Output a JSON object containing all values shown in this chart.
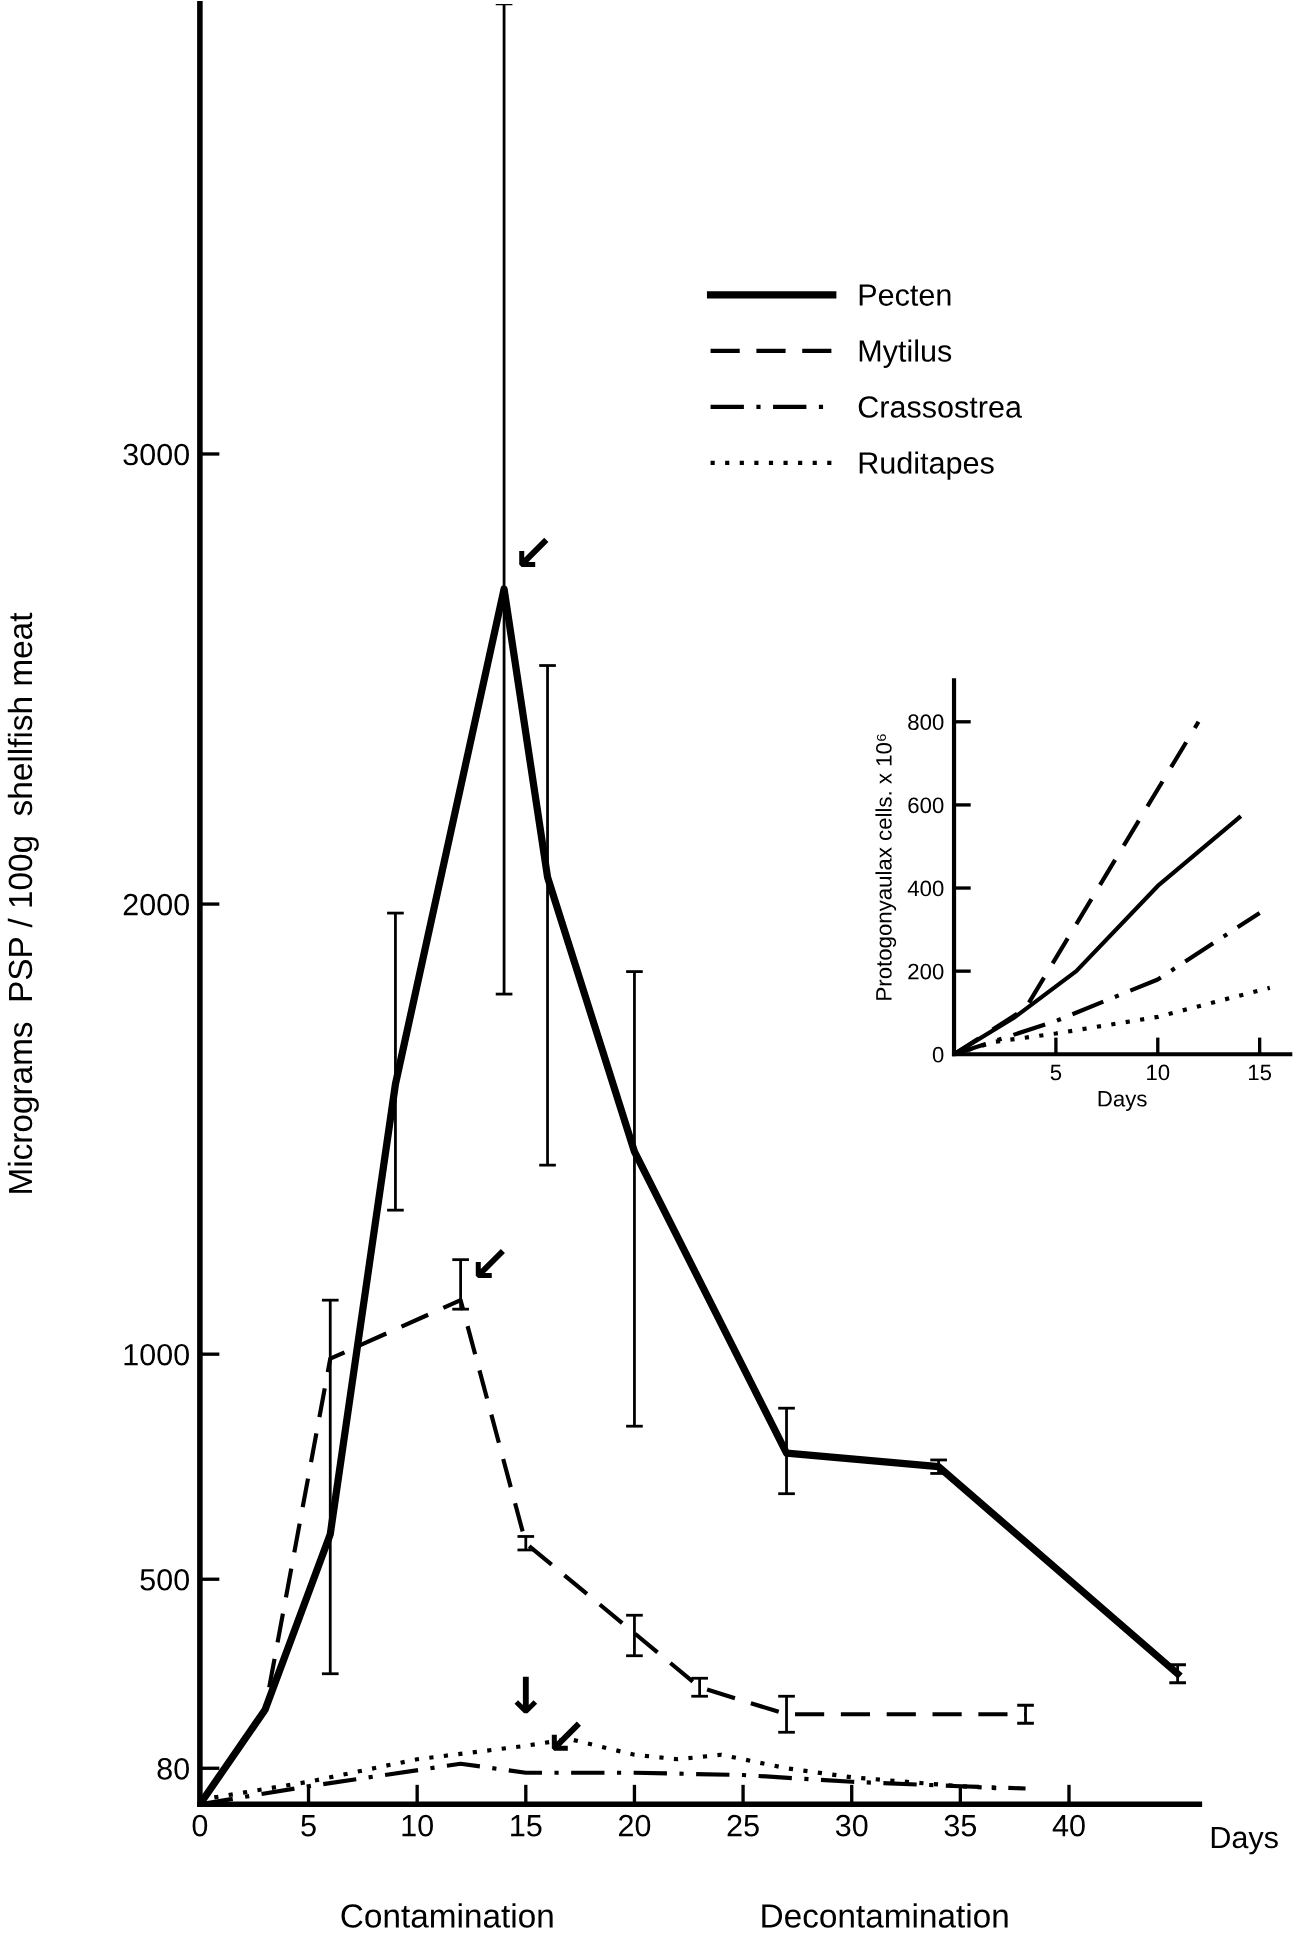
{
  "chart_data": [
    {
      "type": "line",
      "xlabel": "Days",
      "ylabel": "Micrograms  PSP / 100g  shellfish meat",
      "xlim": [
        0,
        46
      ],
      "xticks": [
        0,
        5,
        10,
        15,
        20,
        25,
        30,
        35,
        40
      ],
      "ylim": [
        0,
        4000
      ],
      "yticks": [
        80,
        500,
        1000,
        2000,
        3000
      ],
      "legend": "top right",
      "grid": false,
      "series": [
        {
          "name": "Pecten",
          "color": "#000000",
          "line_style": "solid",
          "x": [
            0,
            3,
            6,
            9,
            14,
            16,
            20,
            27,
            34,
            45
          ],
          "values": [
            0,
            210,
            600,
            1600,
            2700,
            2060,
            1450,
            780,
            750,
            290
          ],
          "errors": [
            null,
            null,
            null,
            [
              1320,
              1980
            ],
            [
              1800,
              4000
            ],
            [
              1420,
              2530
            ],
            [
              840,
              1850
            ],
            [
              690,
              880
            ],
            15,
            20
          ]
        },
        {
          "name": "Mytilus",
          "color": "#000000",
          "line_style": "dashed",
          "x": [
            0,
            3,
            6,
            12,
            15,
            20,
            23,
            27,
            38
          ],
          "values": [
            0,
            210,
            990,
            1120,
            580,
            380,
            260,
            200,
            200
          ],
          "errors": [
            null,
            null,
            [
              290,
              1120
            ],
            [
              1100,
              1210
            ],
            15,
            [
              330,
              420
            ],
            20,
            [
              160,
              240
            ],
            20
          ]
        },
        {
          "name": "Crassostrea",
          "color": "#000000",
          "line_style": "dashdot",
          "x": [
            0,
            5,
            12,
            15,
            20,
            25,
            30,
            35,
            38
          ],
          "values": [
            0,
            40,
            90,
            70,
            70,
            65,
            50,
            40,
            35
          ]
        },
        {
          "name": "Ruditapes",
          "color": "#000000",
          "line_style": "dotted",
          "x": [
            0,
            5,
            10,
            15,
            17,
            20,
            22,
            24,
            27,
            30,
            35,
            37
          ],
          "values": [
            10,
            50,
            100,
            130,
            145,
            110,
            100,
            110,
            80,
            60,
            40,
            35
          ]
        }
      ],
      "annotations": [
        {
          "text": "↙",
          "x": 14,
          "y": 2700
        },
        {
          "text": "↙",
          "x": 12,
          "y": 1120
        },
        {
          "text": "↓",
          "x": 15,
          "y": 130
        },
        {
          "text": "↙",
          "x": 15.5,
          "y": 70
        },
        "Contamination",
        "Decontamination"
      ]
    },
    {
      "type": "line",
      "xlabel": "Days",
      "ylabel": "Protogonyaulax cells. x 10⁶",
      "xlim": [
        0,
        16.5
      ],
      "xticks": [
        5,
        10,
        15
      ],
      "ylim": [
        0,
        900
      ],
      "yticks": [
        0,
        200,
        400,
        600,
        800
      ],
      "grid": false,
      "series": [
        {
          "color": "#000000",
          "line_style": "solid",
          "x": [
            0,
            3,
            6,
            10,
            14
          ],
          "values": [
            0,
            90,
            200,
            405,
            570
          ]
        },
        {
          "color": "#000000",
          "line_style": "dashed",
          "x": [
            0,
            3.5,
            12
          ],
          "values": [
            0,
            110,
            800
          ]
        },
        {
          "color": "#000000",
          "line_style": "dashdot",
          "x": [
            0,
            5,
            10,
            15
          ],
          "values": [
            0,
            80,
            180,
            340
          ]
        },
        {
          "color": "#000000",
          "line_style": "dotted",
          "x": [
            0,
            2,
            5,
            10,
            15.5
          ],
          "values": [
            0,
            30,
            50,
            90,
            160
          ]
        }
      ]
    }
  ]
}
